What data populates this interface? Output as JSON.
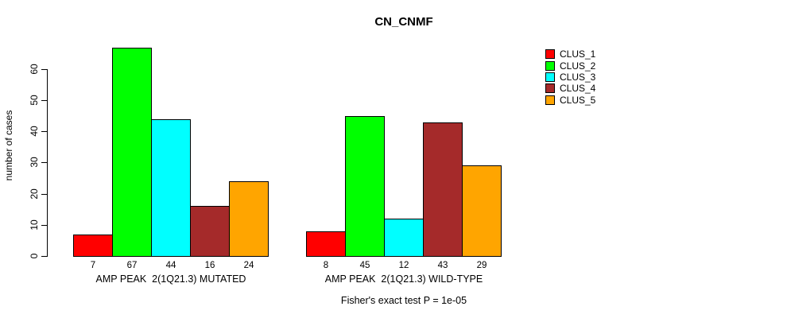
{
  "chart_data": {
    "type": "bar",
    "title": "CN_CNMF",
    "ylabel": "number of cases",
    "ylim": [
      0,
      67
    ],
    "yticks": [
      0,
      10,
      20,
      30,
      40,
      50,
      60
    ],
    "grid": false,
    "legend_position": "right",
    "legend": [
      {
        "label": "CLUS_1",
        "color": "#FF0000"
      },
      {
        "label": "CLUS_2",
        "color": "#00FF00"
      },
      {
        "label": "CLUS_3",
        "color": "#00FFFF"
      },
      {
        "label": "CLUS_4",
        "color": "#A52A2A"
      },
      {
        "label": "CLUS_5",
        "color": "#FFA500"
      }
    ],
    "groups": [
      {
        "label": "AMP PEAK  2(1Q21.3) MUTATED",
        "values": [
          7,
          67,
          44,
          16,
          24
        ]
      },
      {
        "label": "AMP PEAK  2(1Q21.3) WILD-TYPE",
        "values": [
          8,
          45,
          12,
          43,
          29
        ]
      }
    ],
    "footnote": "Fisher's exact test P = 1e-05"
  }
}
